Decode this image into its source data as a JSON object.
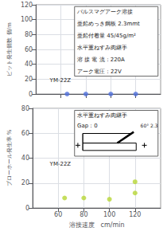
{
  "chart_data": [
    {
      "type": "scatter",
      "ylabel": "ピット発生個数 個/m",
      "x": [
        65,
        80,
        100,
        120
      ],
      "values": [
        0,
        0,
        0,
        0
      ],
      "xlim": [
        40,
        140
      ],
      "xticks": [
        60,
        80,
        100,
        120
      ],
      "ylim": [
        0,
        120
      ],
      "yticks": [
        0,
        20,
        40,
        60,
        80,
        100,
        120
      ],
      "grid": true,
      "tick_labels": "y",
      "marker": "circle",
      "annotations": [
        "YM-22Z",
        "パルスマグアーク溶接",
        "亜鉛めっき鋼板 2.3mmt",
        "亜鉛付着量 45/45g/m²",
        "水平重ねすみ肉継手",
        "溶 接 電 流：220A",
        "アーク電圧：22V"
      ]
    },
    {
      "type": "scatter",
      "xlabel": "溶接速度　cm/min",
      "ylabel": "ブローホール発生率 %",
      "x": [
        65,
        80,
        100,
        120,
        120
      ],
      "values": [
        8,
        8,
        7,
        12,
        21
      ],
      "xlim": [
        40,
        140
      ],
      "xticks": [
        60,
        80,
        100,
        120
      ],
      "ylim": [
        0,
        80
      ],
      "yticks": [
        0,
        20,
        40,
        60,
        80
      ],
      "grid": true,
      "marker": "circle",
      "annotations": [
        "YM-22Z",
        "水平重ねすみ肉継手",
        "Gap：0",
        "60° 2.3"
      ]
    }
  ]
}
